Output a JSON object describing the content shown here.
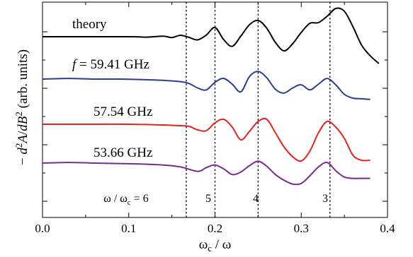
{
  "chart_data": {
    "type": "line",
    "xlabel": "ωc / ω",
    "ylabel": "− d²A/dB² (arb. units)",
    "xlim": [
      0,
      0.4
    ],
    "xticks": [
      0.0,
      0.1,
      0.2,
      0.3,
      0.4
    ],
    "xtick_labels": [
      "0.0",
      "0.1",
      "0.2",
      "0.3",
      "0.4"
    ],
    "y_tick_labels_shown": false,
    "grid": false,
    "series": [
      {
        "name": "theory",
        "color": "#000000",
        "x": [
          0.0,
          0.1,
          0.12,
          0.14,
          0.15,
          0.16,
          0.17,
          0.18,
          0.19,
          0.2,
          0.21,
          0.22,
          0.23,
          0.24,
          0.25,
          0.26,
          0.27,
          0.28,
          0.29,
          0.3,
          0.31,
          0.32,
          0.33,
          0.34,
          0.35,
          0.36,
          0.37,
          0.38,
          0.39
        ],
        "y": [
          0.0,
          0.0,
          -0.03,
          0.04,
          -0.06,
          0.1,
          -0.05,
          -0.22,
          0.12,
          0.65,
          -0.2,
          -0.68,
          0.05,
          0.85,
          1.15,
          0.6,
          -0.4,
          -1.0,
          -0.5,
          0.3,
          0.95,
          1.0,
          1.45,
          2.0,
          1.8,
          0.7,
          -0.6,
          -1.35,
          -1.9
        ]
      },
      {
        "name": "f = 59.41 GHz",
        "color": "#2a3d8f",
        "x": [
          0.0,
          0.03,
          0.06,
          0.09,
          0.12,
          0.14,
          0.16,
          0.17,
          0.18,
          0.19,
          0.2,
          0.21,
          0.22,
          0.23,
          0.24,
          0.25,
          0.26,
          0.27,
          0.28,
          0.29,
          0.3,
          0.31,
          0.32,
          0.33,
          0.34,
          0.35,
          0.36,
          0.37,
          0.38
        ],
        "y": [
          0.0,
          0.05,
          0.0,
          0.0,
          -0.05,
          -0.1,
          -0.2,
          -0.35,
          -0.7,
          -0.85,
          -0.25,
          0.05,
          -0.4,
          -1.0,
          0.2,
          0.6,
          0.1,
          -0.8,
          -1.1,
          -0.7,
          -0.45,
          -0.85,
          -0.4,
          0.05,
          -0.45,
          -1.2,
          -1.5,
          -1.55,
          -1.6
        ]
      },
      {
        "name": "57.54 GHz",
        "color": "#e8221a",
        "x": [
          0.0,
          0.05,
          0.1,
          0.14,
          0.16,
          0.17,
          0.18,
          0.19,
          0.2,
          0.21,
          0.22,
          0.23,
          0.24,
          0.25,
          0.26,
          0.27,
          0.28,
          0.29,
          0.3,
          0.31,
          0.32,
          0.33,
          0.34,
          0.35,
          0.36,
          0.37,
          0.38
        ],
        "y": [
          0.0,
          0.0,
          0.0,
          -0.05,
          -0.1,
          -0.15,
          -0.4,
          -0.45,
          0.1,
          0.35,
          -0.2,
          -1.1,
          -0.5,
          0.2,
          0.35,
          -0.6,
          -1.6,
          -2.3,
          -2.6,
          -1.9,
          -0.6,
          0.2,
          -0.2,
          -1.0,
          -2.2,
          -2.55,
          -2.55
        ]
      },
      {
        "name": "53.66 GHz",
        "color": "#7a2a8c",
        "x": [
          0.0,
          0.03,
          0.06,
          0.1,
          0.14,
          0.16,
          0.18,
          0.19,
          0.2,
          0.21,
          0.22,
          0.23,
          0.24,
          0.25,
          0.26,
          0.27,
          0.28,
          0.29,
          0.3,
          0.31,
          0.32,
          0.33,
          0.34,
          0.35,
          0.36,
          0.37,
          0.38
        ],
        "y": [
          0.0,
          0.05,
          0.0,
          -0.05,
          -0.15,
          -0.3,
          -0.65,
          -0.35,
          -0.15,
          -0.45,
          -0.9,
          -0.7,
          -0.2,
          0.15,
          -0.25,
          -0.9,
          -1.35,
          -1.65,
          -1.6,
          -1.0,
          -0.3,
          0.05,
          -0.6,
          -1.1,
          -1.2,
          -1.2,
          -1.2
        ]
      }
    ],
    "vertical_lines": [
      {
        "x": 0.1667,
        "label": "ω / ωc = 6"
      },
      {
        "x": 0.2,
        "label": "5"
      },
      {
        "x": 0.25,
        "label": "4"
      },
      {
        "x": 0.3333,
        "label": "3"
      }
    ]
  }
}
